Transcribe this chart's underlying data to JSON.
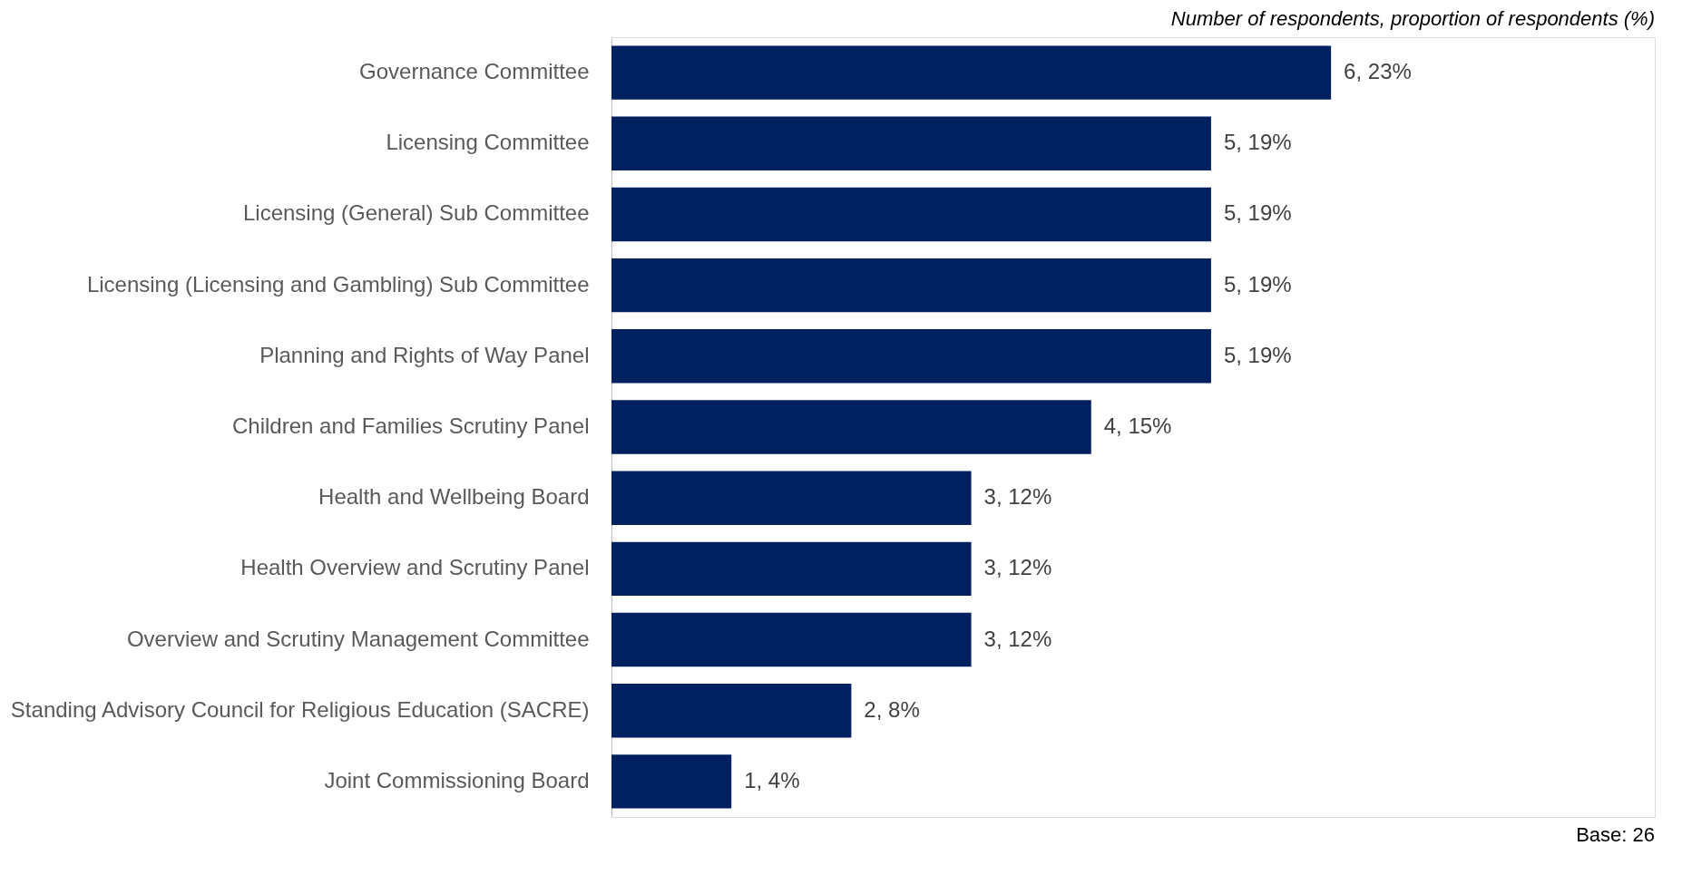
{
  "chart_data": {
    "type": "bar",
    "orientation": "horizontal",
    "title": "Number of respondents, proportion of respondents (%)",
    "categories": [
      "Governance Committee",
      "Licensing Committee",
      "Licensing (General) Sub Committee",
      "Licensing (Licensing and Gambling) Sub Committee",
      "Planning and Rights of Way Panel",
      "Children and Families Scrutiny Panel",
      "Health and Wellbeing Board",
      "Health Overview and Scrutiny Panel",
      "Overview and Scrutiny Management Committee",
      "Standing Advisory Council for Religious Education (SACRE)",
      "Joint Commissioning Board"
    ],
    "values": [
      6,
      5,
      5,
      5,
      5,
      4,
      3,
      3,
      3,
      2,
      1
    ],
    "value_labels": [
      "6, 23%",
      "5, 19%",
      "5, 19%",
      "5, 19%",
      "5, 19%",
      "4, 15%",
      "3, 12%",
      "3, 12%",
      "3, 12%",
      "2, 8%",
      "1, 4%"
    ],
    "color": "#002060",
    "annotations": [
      "Base: 26"
    ],
    "grid": false
  }
}
